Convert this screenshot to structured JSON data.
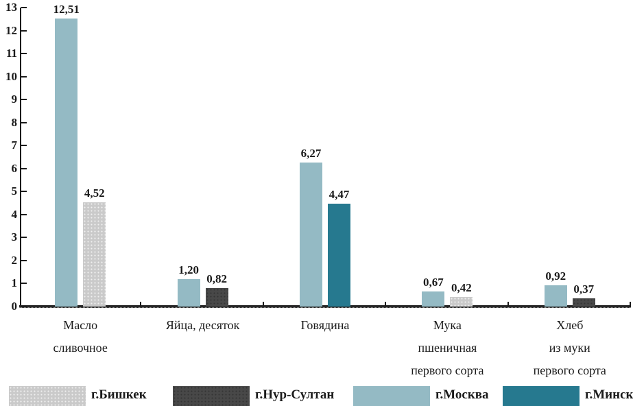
{
  "chart_data": {
    "type": "bar",
    "title": "",
    "xlabel": "",
    "ylabel": "",
    "ylim": [
      0,
      13
    ],
    "ytick_step": 1,
    "grid": false,
    "legend_position": "bottom",
    "categories": [
      "Масло\nсливочное",
      "Яйца, десяток",
      "Говядина",
      "Мука\nпшеничная\nпервого сорта",
      "Хлеб\nиз муки\nпервого сорта"
    ],
    "series": [
      {
        "name": "г.Бишкек",
        "color": "#cacaca",
        "texture": "dots-light",
        "values": [
          4.52,
          null,
          null,
          0.42,
          null
        ]
      },
      {
        "name": "г.Нур-Султан",
        "color": "#484848",
        "texture": "dots-dark",
        "values": [
          null,
          0.82,
          null,
          null,
          0.37
        ]
      },
      {
        "name": "г.Москва",
        "color": "#94bac4",
        "texture": "solid",
        "values": [
          12.51,
          1.2,
          6.27,
          0.67,
          0.92
        ]
      },
      {
        "name": "г.Минск",
        "color": "#26798f",
        "texture": "solid",
        "values": [
          null,
          null,
          4.47,
          null,
          null
        ]
      }
    ],
    "bar_order_per_category": [
      [
        "г.Москва",
        "г.Бишкек"
      ],
      [
        "г.Москва",
        "г.Нур-Султан"
      ],
      [
        "г.Москва",
        "г.Минск"
      ],
      [
        "г.Москва",
        "г.Бишкек"
      ],
      [
        "г.Москва",
        "г.Нур-Султан"
      ]
    ],
    "value_labels_per_category": [
      [
        "12,51",
        "4,52"
      ],
      [
        "1,20",
        "0,82"
      ],
      [
        "6,27",
        "4,47"
      ],
      [
        "0,67",
        "0,42"
      ],
      [
        "0,92",
        "0,37"
      ]
    ],
    "legend": [
      "г.Бишкек",
      "г.Нур-Султан",
      "г.Москва",
      "г.Минск"
    ]
  },
  "colors": {
    "axis": "#1a1a1a",
    "text": "#1a1a1a",
    "background": "#ffffff"
  }
}
